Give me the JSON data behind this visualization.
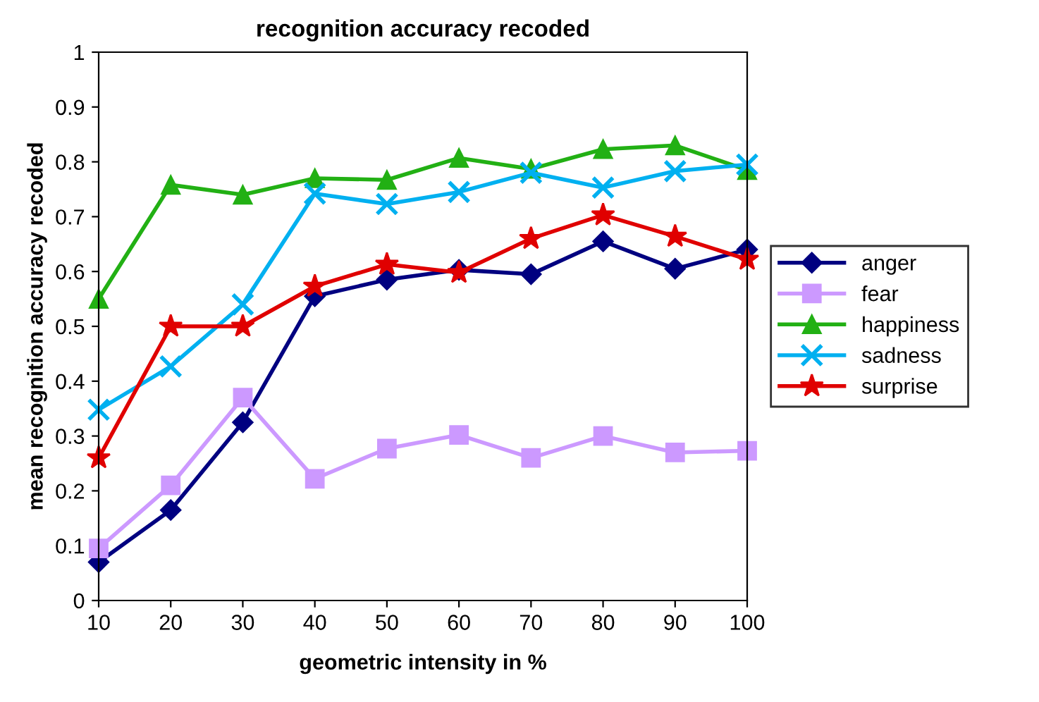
{
  "chart_data": {
    "type": "line",
    "title": "recognition accuracy recoded",
    "xlabel": "geometric intensity in %",
    "ylabel": "mean recognition accuracy recoded",
    "x": [
      10,
      20,
      30,
      40,
      50,
      60,
      70,
      80,
      90,
      100
    ],
    "xlim": [
      10,
      100
    ],
    "xticks": [
      10,
      20,
      30,
      40,
      50,
      60,
      70,
      80,
      90,
      100
    ],
    "ylim": [
      0,
      1
    ],
    "yticks": [
      0,
      0.1,
      0.2,
      0.3,
      0.4,
      0.5,
      0.6,
      0.7,
      0.8,
      0.9,
      1
    ],
    "grid": false,
    "legend": "right",
    "line_style": "solid",
    "series": [
      {
        "name": "anger",
        "color": "#000080",
        "marker": "diamond",
        "values": [
          0.07,
          0.165,
          0.325,
          0.555,
          0.585,
          0.603,
          0.595,
          0.655,
          0.605,
          0.64
        ]
      },
      {
        "name": "fear",
        "color": "#cc99ff",
        "marker": "square",
        "values": [
          0.095,
          0.21,
          0.37,
          0.222,
          0.277,
          0.302,
          0.26,
          0.3,
          0.27,
          0.273
        ]
      },
      {
        "name": "happiness",
        "color": "#22b014",
        "marker": "triangle",
        "values": [
          0.55,
          0.758,
          0.74,
          0.77,
          0.767,
          0.807,
          0.787,
          0.823,
          0.83,
          0.785
        ]
      },
      {
        "name": "sadness",
        "color": "#00b0f0",
        "marker": "cross",
        "values": [
          0.348,
          0.427,
          0.54,
          0.742,
          0.723,
          0.745,
          0.78,
          0.753,
          0.783,
          0.795
        ]
      },
      {
        "name": "surprise",
        "color": "#e00000",
        "marker": "star",
        "values": [
          0.26,
          0.5,
          0.5,
          0.573,
          0.613,
          0.598,
          0.66,
          0.703,
          0.664,
          0.622
        ]
      }
    ]
  }
}
